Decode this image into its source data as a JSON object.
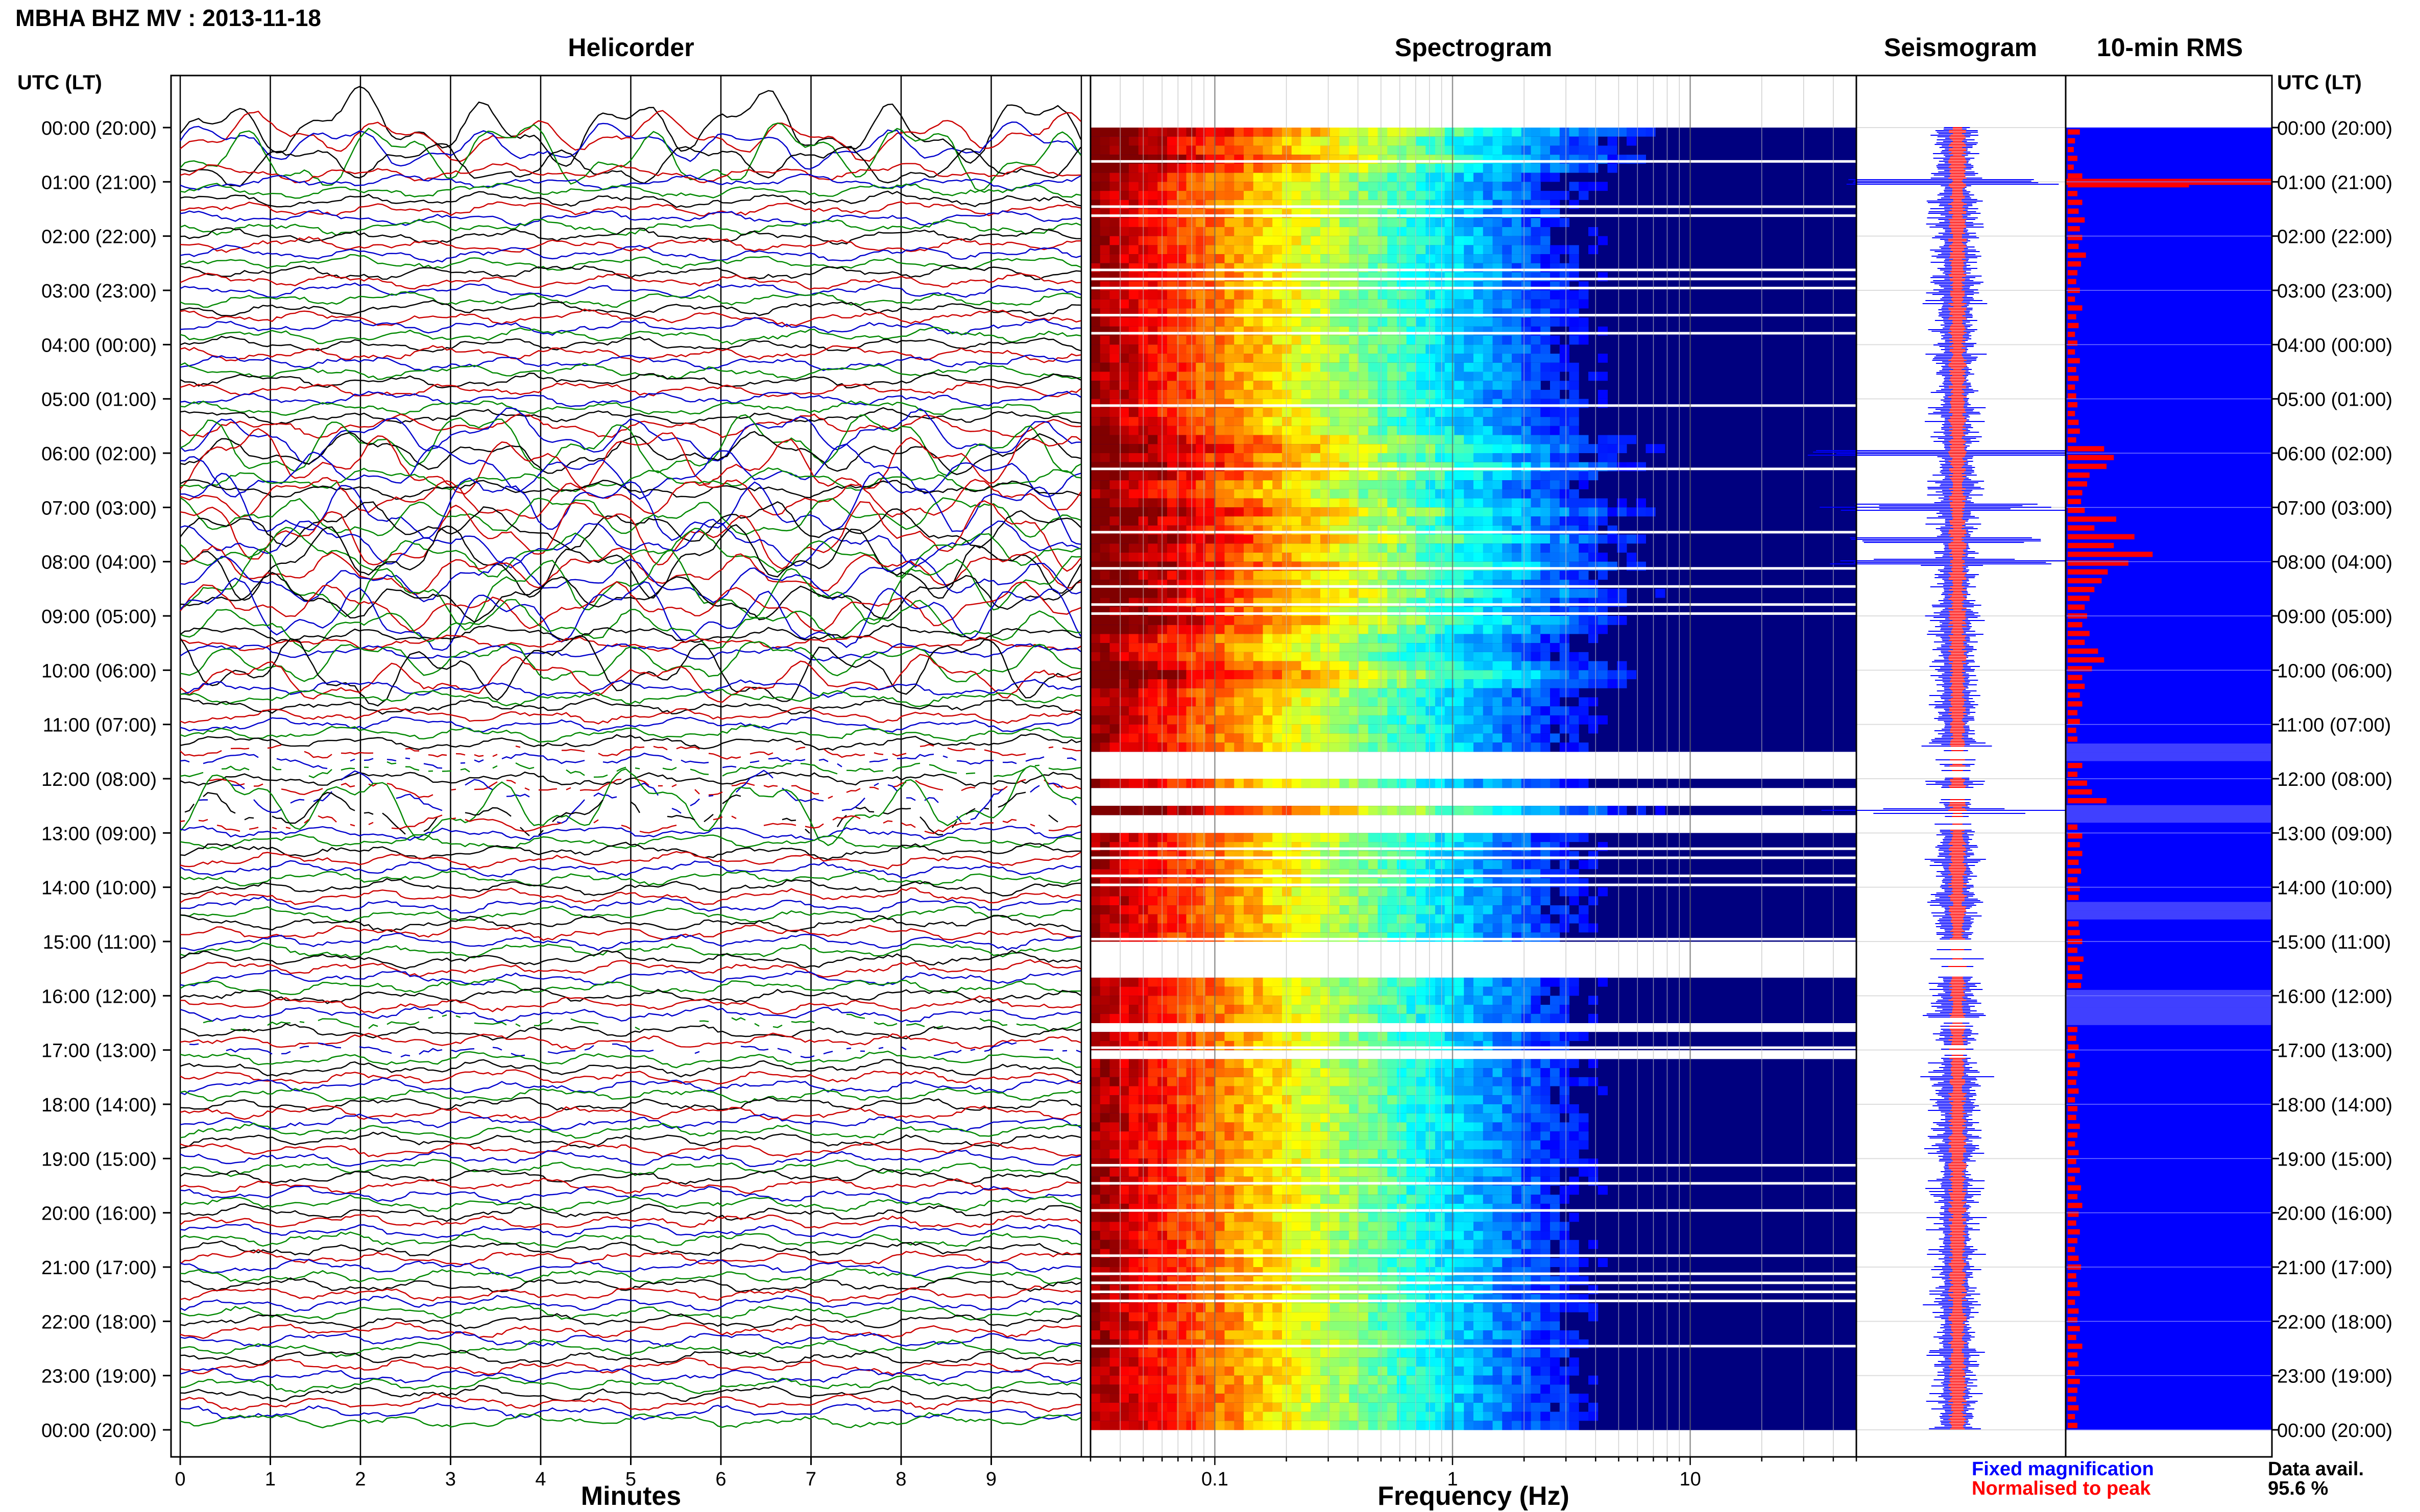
{
  "header": {
    "title": "MBHA BHZ MV : 2013-11-18",
    "utc_label_left": "UTC (LT)",
    "utc_label_right": "UTC (LT)"
  },
  "panels": {
    "helicorder": "Helicorder",
    "spectrogram": "Spectrogram",
    "seismogram": "Seismogram",
    "rms": "10-min RMS"
  },
  "axes": {
    "helicorder_xlabel": "Minutes",
    "spectrogram_xlabel": "Frequency (Hz)"
  },
  "legend": {
    "fixed": "Fixed magnification",
    "normalised": "Normalised to peak",
    "data_avail_label": "Data avail.",
    "data_avail_value": "95.6 %"
  },
  "colors": {
    "trace_cycle": [
      "#000000",
      "#cc0000",
      "#0000cc",
      "#008800"
    ],
    "fixed": "#0000ff",
    "normalised": "#ff0000",
    "rms_bg": "#0000ff",
    "rms_bar": "#ff0000",
    "spec_empty": "#00007f"
  },
  "chart_data": [
    {
      "type": "line",
      "title": "Helicorder",
      "xlabel": "Minutes",
      "x_ticks": [
        "0",
        "1",
        "2",
        "3",
        "4",
        "5",
        "6",
        "7",
        "8",
        "9"
      ],
      "xlim": [
        0,
        10
      ],
      "y_ticks": [
        "00:00 (20:00)",
        "01:00 (21:00)",
        "02:00 (22:00)",
        "03:00 (23:00)",
        "04:00 (00:00)",
        "05:00 (01:00)",
        "06:00 (02:00)",
        "07:00 (03:00)",
        "08:00 (04:00)",
        "09:00 (05:00)",
        "10:00 (06:00)",
        "11:00 (07:00)",
        "12:00 (08:00)",
        "13:00 (09:00)",
        "14:00 (10:00)",
        "15:00 (11:00)",
        "16:00 (12:00)",
        "17:00 (13:00)",
        "18:00 (14:00)",
        "19:00 (15:00)",
        "20:00 (16:00)",
        "21:00 (17:00)",
        "22:00 (18:00)",
        "23:00 (19:00)",
        "00:00 (20:00)"
      ],
      "lines_per_hour": 6,
      "grid": true,
      "large_excursions_hours": [
        0.0,
        0.5,
        5.8,
        6.2,
        7.0,
        7.5,
        8.0,
        8.5,
        9.0,
        10.0,
        12.5
      ]
    },
    {
      "type": "heatmap",
      "title": "Spectrogram",
      "xlabel": "Frequency (Hz)",
      "x_scale": "log",
      "x_ticks": [
        "0.1",
        "1",
        "10"
      ],
      "xlim": [
        0.03,
        50
      ],
      "color_scale": "jet",
      "gap_hours": [
        [
          11.4,
          12.0
        ],
        [
          12.15,
          12.45
        ],
        [
          12.6,
          12.95
        ],
        [
          14.9,
          15.65
        ],
        [
          16.4,
          16.6
        ],
        [
          16.9,
          17.15
        ]
      ]
    },
    {
      "type": "line",
      "title": "Seismogram",
      "series": [
        {
          "name": "Fixed magnification",
          "color": "#0000ff"
        },
        {
          "name": "Normalised to peak",
          "color": "#ff0000"
        }
      ],
      "peak_hours": [
        1.0,
        6.0,
        7.0,
        7.6,
        8.0,
        12.6
      ]
    },
    {
      "type": "bar",
      "title": "10-min RMS",
      "orientation": "horizontal",
      "rms_values": [
        0.1,
        0.06,
        0.05,
        0.08,
        0.05,
        0.12,
        1.0,
        0.08,
        0.12,
        0.09,
        0.14,
        0.1,
        0.12,
        0.09,
        0.15,
        0.11,
        0.08,
        0.07,
        0.1,
        0.06,
        0.12,
        0.07,
        0.09,
        0.06,
        0.08,
        0.06,
        0.1,
        0.07,
        0.09,
        0.06,
        0.07,
        0.08,
        0.06,
        0.09,
        0.1,
        0.07,
        0.3,
        0.38,
        0.32,
        0.18,
        0.16,
        0.12,
        0.11,
        0.14,
        0.4,
        0.22,
        0.55,
        0.38,
        0.7,
        0.5,
        0.33,
        0.28,
        0.22,
        0.18,
        0.14,
        0.16,
        0.12,
        0.18,
        0.14,
        0.25,
        0.3,
        0.2,
        0.12,
        0.14,
        0.1,
        0.12,
        0.08,
        0.1,
        0.07,
        0.08,
        0.0,
        0.0,
        0.12,
        0.08,
        0.16,
        0.2,
        0.32,
        0.0,
        0.0,
        0.08,
        0.12,
        0.1,
        0.12,
        0.09,
        0.11,
        0.08,
        0.1,
        0.09,
        0.0,
        0.0,
        0.09,
        0.1,
        0.12,
        0.08,
        0.13,
        0.1,
        0.12,
        0.11,
        0.0,
        0.0,
        0.0,
        0.0,
        0.08,
        0.07,
        0.09,
        0.06,
        0.1,
        0.08,
        0.07,
        0.09,
        0.06,
        0.08,
        0.07,
        0.1,
        0.08,
        0.06,
        0.09,
        0.07,
        0.1,
        0.06,
        0.11,
        0.08,
        0.12,
        0.09,
        0.07,
        0.1,
        0.08,
        0.06,
        0.09,
        0.11,
        0.07,
        0.08,
        0.1,
        0.06,
        0.09,
        0.08,
        0.1,
        0.07,
        0.12,
        0.08,
        0.09,
        0.06,
        0.1,
        0.08,
        0.07,
        0.09,
        0.06,
        0.08
      ]
    }
  ]
}
